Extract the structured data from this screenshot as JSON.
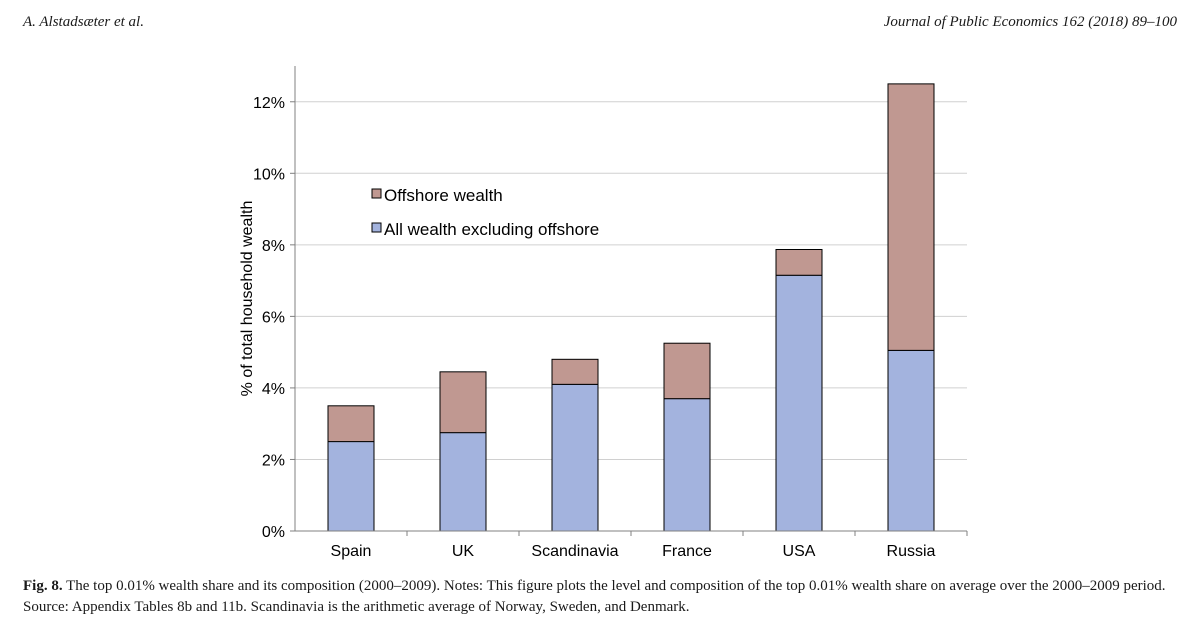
{
  "header": {
    "author": "A. Alstadsæter et al.",
    "journal": "Journal of Public Economics 162 (2018) 89–100"
  },
  "chart_data": {
    "type": "bar",
    "stacked": true,
    "categories": [
      "Spain",
      "UK",
      "Scandinavia",
      "France",
      "USA",
      "Russia"
    ],
    "series": [
      {
        "name": "All wealth excluding offshore",
        "values": [
          2.5,
          2.75,
          4.1,
          3.7,
          7.15,
          5.05
        ],
        "color": "#a3b3de"
      },
      {
        "name": "Offshore wealth",
        "values": [
          1.0,
          1.7,
          0.7,
          1.55,
          0.72,
          7.45
        ],
        "color": "#c09891"
      }
    ],
    "ylabel": "% of total household wealth",
    "ylim": [
      0,
      13
    ],
    "yticks": [
      0,
      2,
      4,
      6,
      8,
      10,
      12
    ],
    "ytick_labels": [
      "0%",
      "2%",
      "4%",
      "6%",
      "8%",
      "10%",
      "12%"
    ],
    "grid": true,
    "legend": [
      "Offshore wealth",
      "All wealth excluding offshore"
    ],
    "legend_position": "upper-left"
  },
  "caption": {
    "label": "Fig. 8.",
    "text": "The top 0.01% wealth share and its composition (2000–2009). Notes: This figure plots the level and composition of the top 0.01% wealth share on average over the 2000–2009 period. Source: Appendix Tables 8b and 11b. Scandinavia is the arithmetic average of Norway, Sweden, and Denmark."
  }
}
